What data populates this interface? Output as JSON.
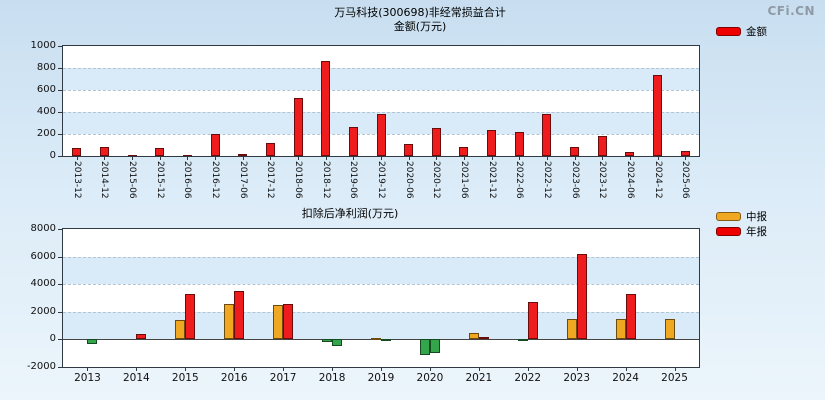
{
  "logo": {
    "text": "CFi.CN"
  },
  "chart_data": [
    {
      "type": "bar",
      "name": "non-recurring-gains-chart",
      "title": "万马科技(300698)非经常损益合计",
      "subtitle": "金额(万元)",
      "categories": [
        "2013-12",
        "2014-12",
        "2015-06",
        "2015-12",
        "2016-06",
        "2016-12",
        "2017-06",
        "2017-12",
        "2018-06",
        "2018-12",
        "2019-06",
        "2019-12",
        "2020-06",
        "2020-12",
        "2021-06",
        "2021-12",
        "2022-06",
        "2022-12",
        "2023-06",
        "2023-12",
        "2024-06",
        "2024-12",
        "2025-06"
      ],
      "values": [
        75,
        85,
        10,
        70,
        10,
        200,
        15,
        120,
        530,
        860,
        265,
        380,
        110,
        255,
        80,
        235,
        215,
        385,
        85,
        180,
        35,
        740,
        50
      ],
      "color": "#ee1c1c",
      "ylim": [
        0,
        1000
      ],
      "yticks": [
        0,
        200,
        400,
        600,
        800,
        1000
      ],
      "legend": [
        {
          "label": "金额",
          "color": "#ee0000"
        }
      ],
      "legend_position": "top-right",
      "grid": true
    },
    {
      "type": "bar",
      "name": "deducted-net-profit-chart",
      "title": "扣除后净利润(万元)",
      "categories": [
        "2013",
        "2014",
        "2015",
        "2016",
        "2017",
        "2018",
        "2019",
        "2020",
        "2021",
        "2022",
        "2023",
        "2024",
        "2025"
      ],
      "series": [
        {
          "name": "中报",
          "color": "#f0a823",
          "values": [
            null,
            null,
            1400,
            2600,
            2500,
            -200,
            100,
            -1100,
            500,
            -100,
            1500,
            1500,
            1500
          ]
        },
        {
          "name": "年报",
          "color": "#ee1c1c",
          "values": [
            -300,
            400,
            3300,
            3500,
            2600,
            -500,
            -150,
            -950,
            200,
            2700,
            6200,
            3300,
            null
          ]
        }
      ],
      "negative_color": "#33a64c",
      "ylim": [
        -2000,
        8000
      ],
      "yticks": [
        -2000,
        0,
        2000,
        4000,
        6000,
        8000
      ],
      "legend": [
        {
          "label": "中报",
          "color": "#f0a823"
        },
        {
          "label": "年报",
          "color": "#ee0000"
        }
      ],
      "legend_position": "top-right",
      "grid": true
    }
  ]
}
